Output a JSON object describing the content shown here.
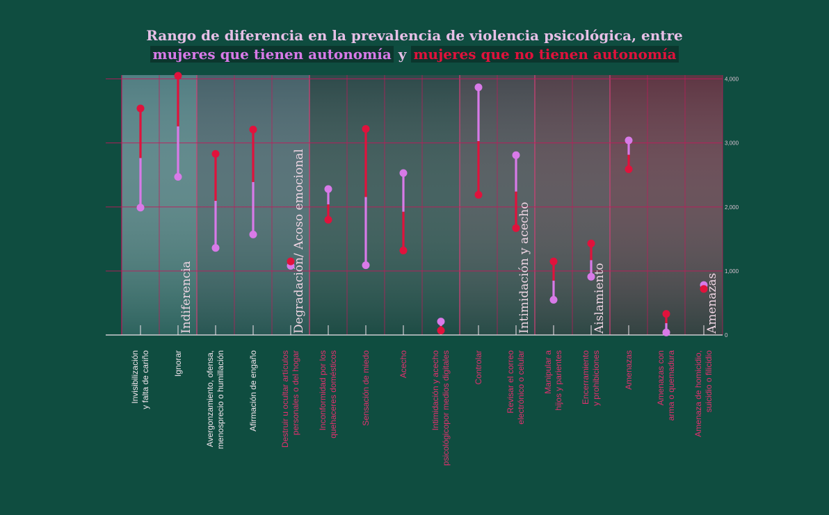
{
  "title": {
    "line1": "Rango de diferencia en la prevalencia de violencia psicológica, entre",
    "group_a": "mujeres que tienen autonomía",
    "connector": "y",
    "group_b": "mujeres que no tienen autonomía"
  },
  "colors": {
    "background": "#0f4d40",
    "group_a": "#d87ae8",
    "group_b": "#e0123c",
    "grid": "#c2185b",
    "category_label": "#e3306f",
    "category_label_light": "#f2e6ee"
  },
  "chart_data": {
    "type": "dumbbell",
    "ylim": [
      0,
      4000
    ],
    "yticks": [
      "0",
      "1,000",
      "2,000",
      "3,000",
      "4,000"
    ],
    "ytick_values": [
      0,
      1000,
      2000,
      3000,
      4000
    ],
    "grid": true,
    "categories": [
      "Invisibilización y falta de cariño",
      "Ignorar",
      "Avergonzamiento, ofensa, menosprecio o humillación",
      "Afirmación de engaño",
      "Destruir u ocultar artículos personales o del hogar",
      "Inconformidad por los quehaceres domésticos",
      "Sensación de miedo",
      "Acecho",
      "Intimidación y acecho psicológicopor medios digitales",
      "Controlar",
      "Revisar el correo electrónico o celular",
      "Manipular a hijos y parientes",
      "Encerramiento y prohibiciones",
      "Amenazas",
      "Amenazas con arma o quemadura",
      "Amenaza de homicidio, suicidio o filicidio"
    ],
    "series": [
      {
        "name": "mujeres que tienen autonomía",
        "values": [
          1990,
          2470,
          1360,
          1570,
          1080,
          2280,
          1090,
          2530,
          210,
          3870,
          2810,
          550,
          910,
          3040,
          40,
          780
        ]
      },
      {
        "name": "mujeres que no tienen autonomía",
        "values": [
          3540,
          4050,
          2830,
          3210,
          1150,
          1800,
          3220,
          1320,
          70,
          2190,
          1670,
          1150,
          1430,
          2590,
          330,
          720
        ]
      }
    ],
    "groups": [
      {
        "label": "Indiferencia",
        "start": 0,
        "end": 1,
        "tint": "#6a8f98"
      },
      {
        "label": "Degradación/ Acoso emocional",
        "start": 2,
        "end": 4,
        "tint": "#5b6a78"
      },
      {
        "label": "",
        "start": 5,
        "end": 8,
        "tint": "#3a4a4e"
      },
      {
        "label": "Intimidación y acecho",
        "start": 9,
        "end": 10,
        "tint": "#5a4a56"
      },
      {
        "label": "Aislamiento",
        "start": 11,
        "end": 12,
        "tint": "#6a3d4d"
      },
      {
        "label": "Amenazas",
        "start": 13,
        "end": 15,
        "tint": "#7a2f44"
      }
    ]
  }
}
